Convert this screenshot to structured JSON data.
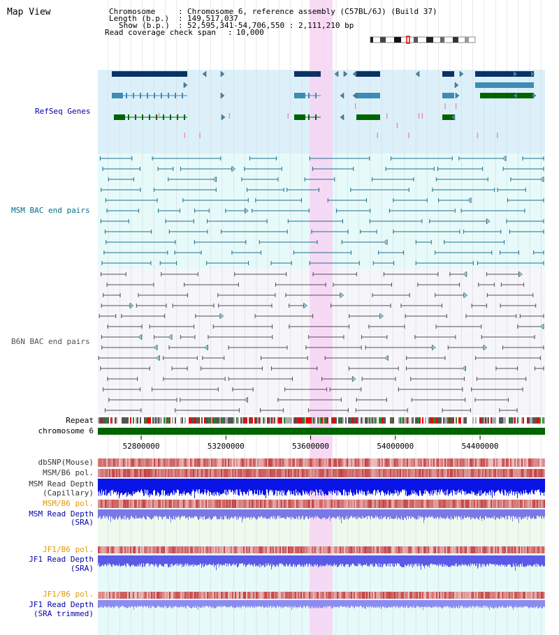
{
  "title": "Map View",
  "header": {
    "chromosome_label": "Chromosome",
    "chromosome_value": "Chromosome 6, reference assembly (C57BL/6J) (Build 37)",
    "length_label": "Length (b.p.)",
    "length_value": "149,517,037",
    "show_label": "Show (b.p.)",
    "show_value": "52,595,341-54,706,550 : 2,111,210 bp",
    "span_label": "Read coverage check span",
    "span_value": "10,000"
  },
  "tracks": {
    "refseq": "RefSeq Genes",
    "msm_bac": "MSM BAC end pairs",
    "b6n_bac": "B6N BAC end pairs",
    "repeat": "Repeat",
    "chromosome": "chromosome 6",
    "dbsnp": "dbSNP(Mouse)",
    "msm_b6_pol_1": "MSM/B6 pol.",
    "msm_read_depth_cap_1": "MSM Read Depth",
    "msm_read_depth_cap_2": "(Capillary)",
    "msm_b6_pol_2": "MSM/B6 pol.",
    "msm_read_depth_sra_1": "MSM Read Depth",
    "msm_read_depth_sra_2": "(SRA)",
    "jf1_b6_pol_1": "JF1/B6 pol.",
    "jf1_read_depth_sra_1": "JF1 Read Depth",
    "jf1_read_depth_sra_2": "(SRA)",
    "jf1_b6_pol_2": "JF1/B6 pol.",
    "jf1_read_depth_trim_1": "JF1 Read Depth",
    "jf1_read_depth_trim_2": "(SRA trimmed)"
  },
  "axis": {
    "ticks": [
      52800000,
      53200000,
      53600000,
      54000000,
      54400000
    ],
    "range": [
      52595341,
      54706550
    ]
  },
  "colors": {
    "refseq_bg": "#dcf0fa",
    "msm_bg": "#e6fafa",
    "b6n_bg": "#f6f6fa",
    "highlight": "#f7d3f3",
    "refseq_dark": "#0a3264",
    "refseq_mid": "#3c8cb4",
    "refseq_green": "#006400",
    "msm_pair": "#1e6e8c",
    "b6n_pair": "#505050",
    "chromosome": "#006400",
    "label_blue": "#0000aa",
    "label_teal": "#006e8c",
    "label_orange": "#e69600"
  }
}
